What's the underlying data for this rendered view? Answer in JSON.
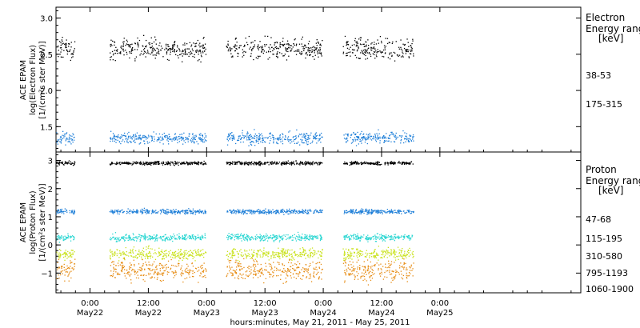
{
  "chart_data": [
    {
      "type": "scatter",
      "panel": "electron",
      "ylabel_lines": [
        "ACE EPAM",
        "log(Electron Flux)",
        "[1/(cm²s ster MeV)]"
      ],
      "ylim": [
        1.15,
        3.15
      ],
      "yticks": [
        1.5,
        2.0,
        2.5,
        3.0
      ],
      "ytick_labels": [
        "1.5",
        "2.0",
        "2.5",
        "3.0"
      ],
      "legend_title_lines": [
        "Electron",
        "Energy ranges",
        "[keV]"
      ],
      "series": [
        {
          "name": "38-53",
          "color": "#000000",
          "mean": 2.58,
          "spread": 0.07
        },
        {
          "name": "175-315",
          "color": "#1f7fd8",
          "mean": 1.35,
          "spread": 0.04
        }
      ]
    },
    {
      "type": "scatter",
      "panel": "proton",
      "ylabel_lines": [
        "ACE EPAM",
        "log(Proton Flux)",
        "[1/(cm²s ster MeV)]"
      ],
      "ylim": [
        -1.7,
        3.3
      ],
      "yticks": [
        -1,
        0,
        1,
        2,
        3
      ],
      "ytick_labels": [
        "−1",
        "0",
        "1",
        "2",
        "3"
      ],
      "legend_title_lines": [
        "Proton",
        "Energy ranges",
        "[keV]"
      ],
      "series": [
        {
          "name": "47-68",
          "color": "#000000",
          "mean": 2.92,
          "spread": 0.03
        },
        {
          "name": "115-195",
          "color": "#1f7fd8",
          "mean": 1.2,
          "spread": 0.04
        },
        {
          "name": "310-580",
          "color": "#2ad6d2",
          "mean": 0.28,
          "spread": 0.06
        },
        {
          "name": "795-1193",
          "color": "#c9e21b",
          "mean": -0.3,
          "spread": 0.1
        },
        {
          "name": "1060-1900",
          "color": "#e68a10",
          "mean": -0.88,
          "spread": 0.18
        }
      ]
    }
  ],
  "x_axis": {
    "range_hours": [
      -7,
      101
    ],
    "ticks": [
      {
        "hour": 0,
        "time": "0:00",
        "date": "May22"
      },
      {
        "hour": 12,
        "time": "12:00",
        "date": "May22"
      },
      {
        "hour": 24,
        "time": "0:00",
        "date": "May23"
      },
      {
        "hour": 36,
        "time": "12:00",
        "date": "May23"
      },
      {
        "hour": 48,
        "time": "0:00",
        "date": "May24"
      },
      {
        "hour": 60,
        "time": "12:00",
        "date": "May24"
      },
      {
        "hour": 72,
        "time": "0:00",
        "date": "May25"
      }
    ],
    "title": "hours:minutes, May 21, 2011 - May 25, 2011"
  },
  "data_segments_hours": [
    [
      -7,
      -3.2
    ],
    [
      4,
      23.8
    ],
    [
      28,
      47.8
    ],
    [
      52,
      66.5
    ]
  ]
}
